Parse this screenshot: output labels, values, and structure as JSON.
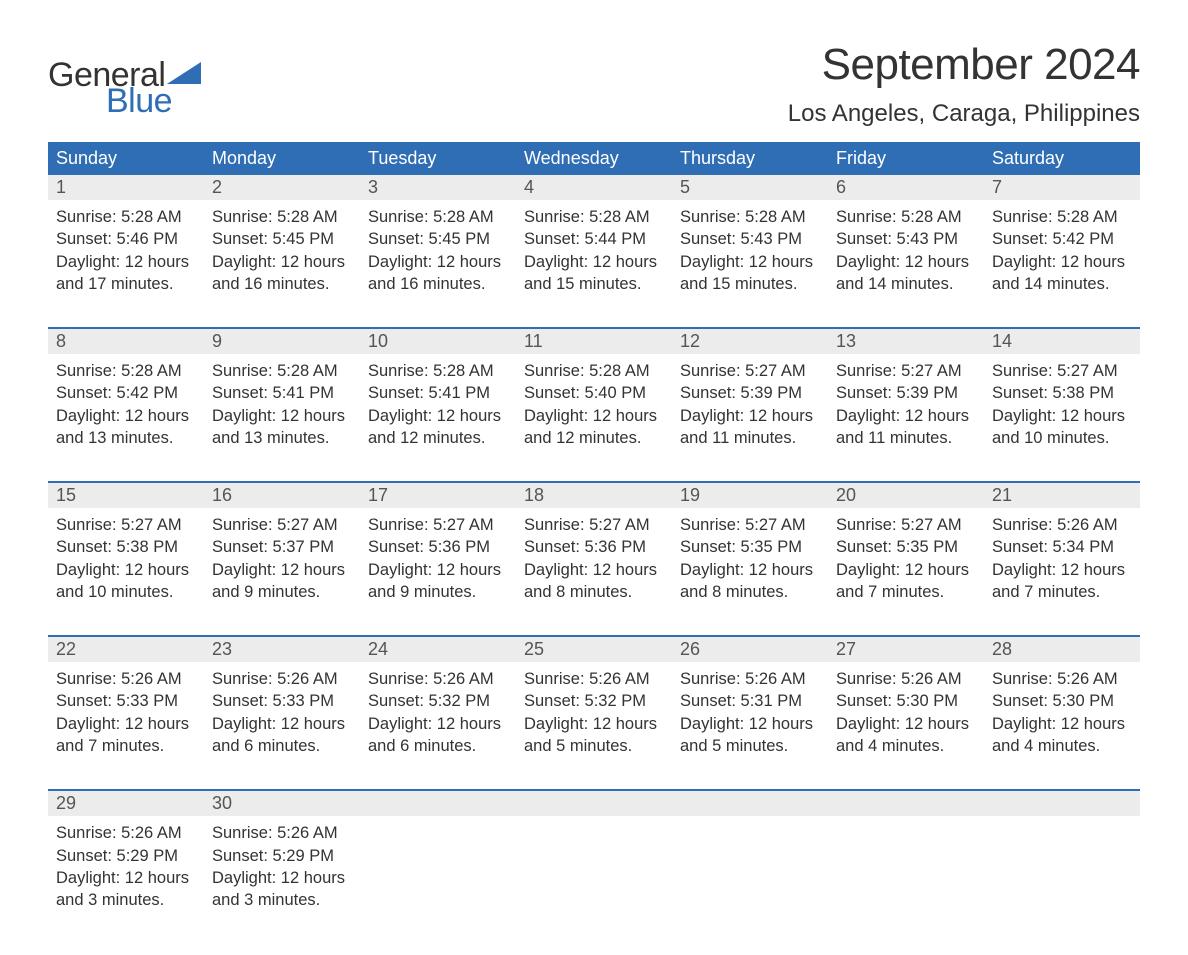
{
  "logo": {
    "word1": "General",
    "word2": "Blue",
    "shape_color": "#2f6eb5"
  },
  "title": "September 2024",
  "location": "Los Angeles, Caraga, Philippines",
  "colors": {
    "header_bg": "#2f6eb5",
    "daterow_bg": "#ececec",
    "week_border": "#2f6eb5",
    "text": "#333333",
    "date_text": "#555555"
  },
  "typography": {
    "title_fontsize": 44,
    "location_fontsize": 24,
    "dayheader_fontsize": 18,
    "cell_fontsize": 16.5
  },
  "day_names": [
    "Sunday",
    "Monday",
    "Tuesday",
    "Wednesday",
    "Thursday",
    "Friday",
    "Saturday"
  ],
  "weeks": [
    {
      "cells": [
        {
          "date": "1",
          "sunrise": "Sunrise: 5:28 AM",
          "sunset": "Sunset: 5:46 PM",
          "daylight": "Daylight: 12 hours and 17 minutes."
        },
        {
          "date": "2",
          "sunrise": "Sunrise: 5:28 AM",
          "sunset": "Sunset: 5:45 PM",
          "daylight": "Daylight: 12 hours and 16 minutes."
        },
        {
          "date": "3",
          "sunrise": "Sunrise: 5:28 AM",
          "sunset": "Sunset: 5:45 PM",
          "daylight": "Daylight: 12 hours and 16 minutes."
        },
        {
          "date": "4",
          "sunrise": "Sunrise: 5:28 AM",
          "sunset": "Sunset: 5:44 PM",
          "daylight": "Daylight: 12 hours and 15 minutes."
        },
        {
          "date": "5",
          "sunrise": "Sunrise: 5:28 AM",
          "sunset": "Sunset: 5:43 PM",
          "daylight": "Daylight: 12 hours and 15 minutes."
        },
        {
          "date": "6",
          "sunrise": "Sunrise: 5:28 AM",
          "sunset": "Sunset: 5:43 PM",
          "daylight": "Daylight: 12 hours and 14 minutes."
        },
        {
          "date": "7",
          "sunrise": "Sunrise: 5:28 AM",
          "sunset": "Sunset: 5:42 PM",
          "daylight": "Daylight: 12 hours and 14 minutes."
        }
      ]
    },
    {
      "cells": [
        {
          "date": "8",
          "sunrise": "Sunrise: 5:28 AM",
          "sunset": "Sunset: 5:42 PM",
          "daylight": "Daylight: 12 hours and 13 minutes."
        },
        {
          "date": "9",
          "sunrise": "Sunrise: 5:28 AM",
          "sunset": "Sunset: 5:41 PM",
          "daylight": "Daylight: 12 hours and 13 minutes."
        },
        {
          "date": "10",
          "sunrise": "Sunrise: 5:28 AM",
          "sunset": "Sunset: 5:41 PM",
          "daylight": "Daylight: 12 hours and 12 minutes."
        },
        {
          "date": "11",
          "sunrise": "Sunrise: 5:28 AM",
          "sunset": "Sunset: 5:40 PM",
          "daylight": "Daylight: 12 hours and 12 minutes."
        },
        {
          "date": "12",
          "sunrise": "Sunrise: 5:27 AM",
          "sunset": "Sunset: 5:39 PM",
          "daylight": "Daylight: 12 hours and 11 minutes."
        },
        {
          "date": "13",
          "sunrise": "Sunrise: 5:27 AM",
          "sunset": "Sunset: 5:39 PM",
          "daylight": "Daylight: 12 hours and 11 minutes."
        },
        {
          "date": "14",
          "sunrise": "Sunrise: 5:27 AM",
          "sunset": "Sunset: 5:38 PM",
          "daylight": "Daylight: 12 hours and 10 minutes."
        }
      ]
    },
    {
      "cells": [
        {
          "date": "15",
          "sunrise": "Sunrise: 5:27 AM",
          "sunset": "Sunset: 5:38 PM",
          "daylight": "Daylight: 12 hours and 10 minutes."
        },
        {
          "date": "16",
          "sunrise": "Sunrise: 5:27 AM",
          "sunset": "Sunset: 5:37 PM",
          "daylight": "Daylight: 12 hours and 9 minutes."
        },
        {
          "date": "17",
          "sunrise": "Sunrise: 5:27 AM",
          "sunset": "Sunset: 5:36 PM",
          "daylight": "Daylight: 12 hours and 9 minutes."
        },
        {
          "date": "18",
          "sunrise": "Sunrise: 5:27 AM",
          "sunset": "Sunset: 5:36 PM",
          "daylight": "Daylight: 12 hours and 8 minutes."
        },
        {
          "date": "19",
          "sunrise": "Sunrise: 5:27 AM",
          "sunset": "Sunset: 5:35 PM",
          "daylight": "Daylight: 12 hours and 8 minutes."
        },
        {
          "date": "20",
          "sunrise": "Sunrise: 5:27 AM",
          "sunset": "Sunset: 5:35 PM",
          "daylight": "Daylight: 12 hours and 7 minutes."
        },
        {
          "date": "21",
          "sunrise": "Sunrise: 5:26 AM",
          "sunset": "Sunset: 5:34 PM",
          "daylight": "Daylight: 12 hours and 7 minutes."
        }
      ]
    },
    {
      "cells": [
        {
          "date": "22",
          "sunrise": "Sunrise: 5:26 AM",
          "sunset": "Sunset: 5:33 PM",
          "daylight": "Daylight: 12 hours and 7 minutes."
        },
        {
          "date": "23",
          "sunrise": "Sunrise: 5:26 AM",
          "sunset": "Sunset: 5:33 PM",
          "daylight": "Daylight: 12 hours and 6 minutes."
        },
        {
          "date": "24",
          "sunrise": "Sunrise: 5:26 AM",
          "sunset": "Sunset: 5:32 PM",
          "daylight": "Daylight: 12 hours and 6 minutes."
        },
        {
          "date": "25",
          "sunrise": "Sunrise: 5:26 AM",
          "sunset": "Sunset: 5:32 PM",
          "daylight": "Daylight: 12 hours and 5 minutes."
        },
        {
          "date": "26",
          "sunrise": "Sunrise: 5:26 AM",
          "sunset": "Sunset: 5:31 PM",
          "daylight": "Daylight: 12 hours and 5 minutes."
        },
        {
          "date": "27",
          "sunrise": "Sunrise: 5:26 AM",
          "sunset": "Sunset: 5:30 PM",
          "daylight": "Daylight: 12 hours and 4 minutes."
        },
        {
          "date": "28",
          "sunrise": "Sunrise: 5:26 AM",
          "sunset": "Sunset: 5:30 PM",
          "daylight": "Daylight: 12 hours and 4 minutes."
        }
      ]
    },
    {
      "cells": [
        {
          "date": "29",
          "sunrise": "Sunrise: 5:26 AM",
          "sunset": "Sunset: 5:29 PM",
          "daylight": "Daylight: 12 hours and 3 minutes."
        },
        {
          "date": "30",
          "sunrise": "Sunrise: 5:26 AM",
          "sunset": "Sunset: 5:29 PM",
          "daylight": "Daylight: 12 hours and 3 minutes."
        },
        {
          "date": "",
          "sunrise": "",
          "sunset": "",
          "daylight": ""
        },
        {
          "date": "",
          "sunrise": "",
          "sunset": "",
          "daylight": ""
        },
        {
          "date": "",
          "sunrise": "",
          "sunset": "",
          "daylight": ""
        },
        {
          "date": "",
          "sunrise": "",
          "sunset": "",
          "daylight": ""
        },
        {
          "date": "",
          "sunrise": "",
          "sunset": "",
          "daylight": ""
        }
      ]
    }
  ]
}
